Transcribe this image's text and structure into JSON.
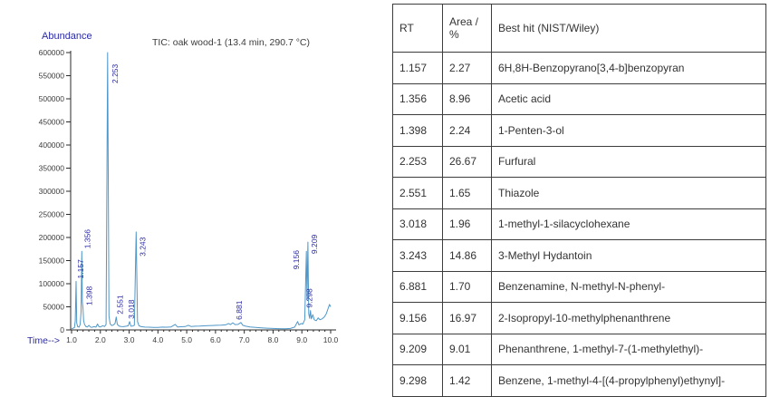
{
  "chart_data": {
    "type": "line",
    "title": "TIC: oak wood-1 (13.4 min, 290.7 °C)",
    "xlabel": "Time-->",
    "ylabel": "Abundance",
    "xlim": [
      1.0,
      10.0
    ],
    "ylim": [
      0,
      600000
    ],
    "x_tick_step": 1.0,
    "x_minor_step": 0.2,
    "y_tick_step": 50000,
    "grid": false,
    "legend": "none",
    "line_color": "#4f97c9",
    "peak_label_color": "#2b2ba3",
    "axis_text_color": "#3c3c3c",
    "axis_line_color": "#2a2a2a",
    "axis_title_color": "#2b2ba3",
    "peaks": [
      {
        "rt": "1.157",
        "value": 105000,
        "dx": 8,
        "dy": -3
      },
      {
        "rt": "1.356",
        "value": 170000,
        "dx": 9,
        "dy": -3
      },
      {
        "rt": "1.398",
        "value": 47000,
        "dx": 10,
        "dy": -3
      },
      {
        "rt": "2.253",
        "value": 600000,
        "dx": 11,
        "dy": 34
      },
      {
        "rt": "2.551",
        "value": 28000,
        "dx": 7,
        "dy": -3
      },
      {
        "rt": "3.018",
        "value": 18000,
        "dx": 5,
        "dy": -3
      },
      {
        "rt": "3.243",
        "value": 212000,
        "dx": 10,
        "dy": 27
      },
      {
        "rt": "6.881",
        "value": 16000,
        "dx": 1,
        "dy": -3
      },
      {
        "rt": "9.156",
        "value": 170000,
        "dx": -8,
        "dy": 20
      },
      {
        "rt": "9.209",
        "value": 190000,
        "dx": 10,
        "dy": 13
      },
      {
        "rt": "9.298",
        "value": 42000,
        "dx": 2,
        "dy": -3
      }
    ],
    "trace": [
      [
        1.0,
        3000
      ],
      [
        1.05,
        3500
      ],
      [
        1.1,
        5000
      ],
      [
        1.13,
        20000
      ],
      [
        1.157,
        105000
      ],
      [
        1.18,
        15000
      ],
      [
        1.21,
        7000
      ],
      [
        1.26,
        6000
      ],
      [
        1.3,
        12000
      ],
      [
        1.33,
        40000
      ],
      [
        1.356,
        170000
      ],
      [
        1.375,
        60000
      ],
      [
        1.398,
        47000
      ],
      [
        1.42,
        20000
      ],
      [
        1.45,
        12000
      ],
      [
        1.5,
        7000
      ],
      [
        1.55,
        6500
      ],
      [
        1.6,
        10000
      ],
      [
        1.65,
        6500
      ],
      [
        1.7,
        5500
      ],
      [
        1.78,
        7000
      ],
      [
        1.85,
        6000
      ],
      [
        1.9,
        13000
      ],
      [
        1.95,
        7000
      ],
      [
        2.0,
        6500
      ],
      [
        2.08,
        9000
      ],
      [
        2.15,
        7500
      ],
      [
        2.2,
        12000
      ],
      [
        2.253,
        600000
      ],
      [
        2.3,
        30000
      ],
      [
        2.34,
        13000
      ],
      [
        2.4,
        9500
      ],
      [
        2.46,
        11000
      ],
      [
        2.51,
        14000
      ],
      [
        2.551,
        28000
      ],
      [
        2.59,
        12000
      ],
      [
        2.65,
        8500
      ],
      [
        2.72,
        7500
      ],
      [
        2.8,
        7000
      ],
      [
        2.9,
        8000
      ],
      [
        2.97,
        9000
      ],
      [
        3.018,
        18000
      ],
      [
        3.06,
        8000
      ],
      [
        3.12,
        8500
      ],
      [
        3.18,
        10000
      ],
      [
        3.243,
        212000
      ],
      [
        3.29,
        18000
      ],
      [
        3.34,
        9000
      ],
      [
        3.42,
        7000
      ],
      [
        3.55,
        6000
      ],
      [
        3.7,
        5800
      ],
      [
        3.85,
        5500
      ],
      [
        4.0,
        5500
      ],
      [
        4.15,
        6000
      ],
      [
        4.3,
        5800
      ],
      [
        4.45,
        6200
      ],
      [
        4.6,
        12000
      ],
      [
        4.68,
        6500
      ],
      [
        4.8,
        6800
      ],
      [
        4.95,
        7200
      ],
      [
        5.05,
        10000
      ],
      [
        5.15,
        7500
      ],
      [
        5.3,
        8000
      ],
      [
        5.45,
        8300
      ],
      [
        5.6,
        8800
      ],
      [
        5.75,
        9200
      ],
      [
        5.9,
        9600
      ],
      [
        6.05,
        10000
      ],
      [
        6.2,
        10200
      ],
      [
        6.35,
        11000
      ],
      [
        6.45,
        14000
      ],
      [
        6.52,
        11500
      ],
      [
        6.6,
        15500
      ],
      [
        6.68,
        11500
      ],
      [
        6.78,
        12000
      ],
      [
        6.881,
        16000
      ],
      [
        6.95,
        10000
      ],
      [
        7.05,
        8000
      ],
      [
        7.2,
        6500
      ],
      [
        7.4,
        5500
      ],
      [
        7.6,
        4500
      ],
      [
        7.8,
        3800
      ],
      [
        8.0,
        3200
      ],
      [
        8.2,
        2800
      ],
      [
        8.4,
        2600
      ],
      [
        8.6,
        3200
      ],
      [
        8.75,
        6000
      ],
      [
        8.85,
        18000
      ],
      [
        8.9,
        11000
      ],
      [
        8.97,
        14000
      ],
      [
        9.03,
        12500
      ],
      [
        9.1,
        22000
      ],
      [
        9.156,
        170000
      ],
      [
        9.18,
        65000
      ],
      [
        9.209,
        190000
      ],
      [
        9.24,
        35000
      ],
      [
        9.27,
        25000
      ],
      [
        9.298,
        42000
      ],
      [
        9.33,
        24000
      ],
      [
        9.38,
        33000
      ],
      [
        9.43,
        22000
      ],
      [
        9.5,
        20000
      ],
      [
        9.57,
        26000
      ],
      [
        9.63,
        22000
      ],
      [
        9.7,
        24000
      ],
      [
        9.78,
        28000
      ],
      [
        9.85,
        35000
      ],
      [
        9.92,
        48000
      ],
      [
        9.96,
        55000
      ],
      [
        10.0,
        50000
      ]
    ]
  },
  "table": {
    "columns": [
      "RT",
      "Area / %",
      "Best hit (NIST/Wiley)"
    ],
    "rows": [
      [
        "1.157",
        "2.27",
        "6H,8H-Benzopyrano[3,4-b]benzopyran"
      ],
      [
        "1.356",
        "8.96",
        "Acetic acid"
      ],
      [
        "1.398",
        "2.24",
        "1-Penten-3-ol"
      ],
      [
        "2.253",
        "26.67",
        "Furfural"
      ],
      [
        "2.551",
        "1.65",
        "Thiazole"
      ],
      [
        "3.018",
        "1.96",
        "1-methyl-1-silacyclohexane"
      ],
      [
        "3.243",
        "14.86",
        "3-Methyl Hydantoin"
      ],
      [
        "6.881",
        "1.70",
        "Benzenamine, N-methyl-N-phenyl-"
      ],
      [
        "9.156",
        "16.97",
        "2-Isopropyl-10-methylphenanthrene"
      ],
      [
        "9.209",
        "9.01",
        "Phenanthrene, 1-methyl-7-(1-methylethyl)-"
      ],
      [
        "9.298",
        "1.42",
        "Benzene, 1-methyl-4-[(4-propylphenyl)ethynyl]-"
      ]
    ]
  }
}
